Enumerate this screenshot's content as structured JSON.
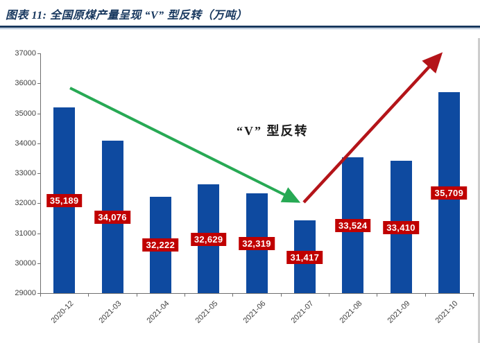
{
  "header": {
    "title": "图表 11:  全国原煤产量呈现 “V” 型反转（万吨）"
  },
  "chart_data": {
    "type": "bar",
    "title": "图表 11:  全国原煤产量呈现 “V” 型反转（万吨）",
    "unit": "万吨",
    "categories": [
      "2020-12",
      "2021-03",
      "2021-04",
      "2021-05",
      "2021-06",
      "2021-07",
      "2021-08",
      "2021-09",
      "2021-10"
    ],
    "values": [
      35189,
      34076,
      32222,
      32629,
      32319,
      31417,
      33524,
      33410,
      35709
    ],
    "value_labels": [
      "35,189",
      "34,076",
      "32,222",
      "32,629",
      "32,319",
      "31,417",
      "33,524",
      "33,410",
      "35,709"
    ],
    "xlabel": "",
    "ylabel": "",
    "ylim": [
      29000,
      37000
    ],
    "yticks": [
      29000,
      30000,
      31000,
      32000,
      33000,
      34000,
      35000,
      36000,
      37000
    ],
    "grid": false,
    "legend": "none",
    "annotation": "“V” 型反转",
    "annotations_arrows": [
      {
        "name": "decline-arrow",
        "meaning": "下行趋势",
        "color": "#27A954"
      },
      {
        "name": "rebound-arrow",
        "meaning": "上行反转",
        "color": "#B41419"
      }
    ],
    "colors": {
      "bar": "#0E4AA0",
      "label_bg": "#C00000",
      "label_text": "#FFFFFF",
      "title": "#17375E",
      "axis": "#6e6e6e",
      "tick_text": "#404040",
      "green_arrow": "#27A954",
      "red_arrow": "#B41419"
    }
  }
}
